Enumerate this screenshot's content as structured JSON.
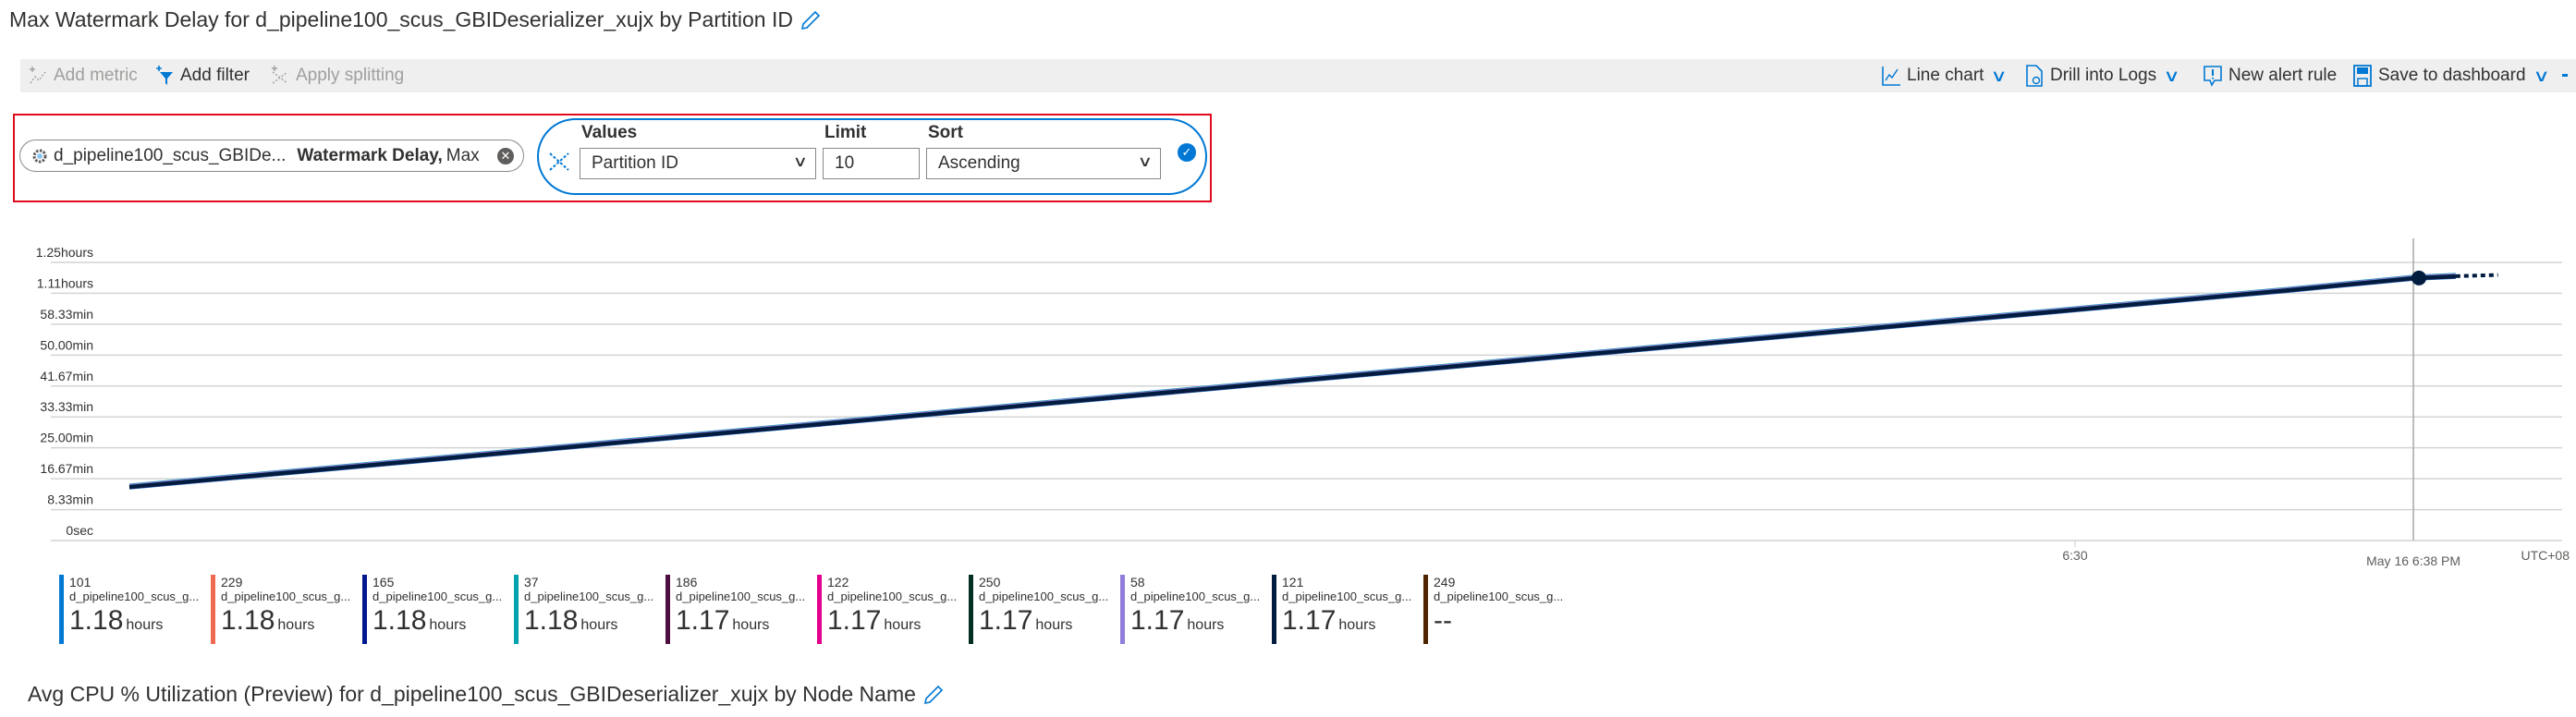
{
  "chart1": {
    "title": "Max Watermark Delay for d_pipeline100_scus_GBIDeserializer_xujx by Partition ID"
  },
  "toolbar": {
    "add_metric": "Add metric",
    "add_filter": "Add filter",
    "apply_splitting": "Apply splitting",
    "line_chart": "Line chart",
    "drill_into_logs": "Drill into Logs",
    "new_alert_rule": "New alert rule",
    "save_to_dashboard": "Save to dashboard"
  },
  "metric_pill": {
    "resource": "d_pipeline100_scus_GBIDe...",
    "metric": "Watermark Delay,",
    "aggregation": "Max"
  },
  "splitting": {
    "values_label": "Values",
    "values_selected": "Partition ID",
    "limit_label": "Limit",
    "limit_value": "10",
    "sort_label": "Sort",
    "sort_selected": "Ascending"
  },
  "colors": {
    "accent": "#0078d4",
    "highlight_border": "#e00b1c"
  },
  "chart_data": {
    "type": "line",
    "title": "Max Watermark Delay for d_pipeline100_scus_GBIDeserializer_xujx by Partition ID",
    "ylabel": "",
    "ylim_min": [
      0,
      75
    ],
    "yticks": [
      {
        "v": 0,
        "label": "0sec"
      },
      {
        "v": 8.33,
        "label": "8.33min"
      },
      {
        "v": 16.67,
        "label": "16.67min"
      },
      {
        "v": 25,
        "label": "25.00min"
      },
      {
        "v": 33.33,
        "label": "33.33min"
      },
      {
        "v": 41.67,
        "label": "41.67min"
      },
      {
        "v": 50,
        "label": "50.00min"
      },
      {
        "v": 58.33,
        "label": "58.33min"
      },
      {
        "v": 66.67,
        "label": "1.11hours"
      },
      {
        "v": 75,
        "label": "1.25hours"
      }
    ],
    "xticks": [
      {
        "t": "18:30",
        "label": "6:30"
      }
    ],
    "crosshair": {
      "t": "18:38",
      "label": "May 16 6:38 PM",
      "value_min": 70.8
    },
    "timezone": "UTC+08",
    "grid": true,
    "x": [
      "17:44",
      "17:50",
      "17:55",
      "18:00",
      "18:05",
      "18:10",
      "18:15",
      "18:20",
      "18:25",
      "18:30",
      "18:35",
      "18:38",
      "18:39"
    ],
    "y_min": [
      14.5,
      20.7,
      25.9,
      31.1,
      36.3,
      41.5,
      46.7,
      51.9,
      57.1,
      62.3,
      67.5,
      70.8,
      71.3
    ],
    "incomplete_until": {
      "t": "18:40",
      "value_min": 71.6
    },
    "series": [
      {
        "name": "101",
        "color": "#0078d4",
        "value": "1.18",
        "unit": "hours"
      },
      {
        "name": "229",
        "color": "#ef6950",
        "value": "1.18",
        "unit": "hours"
      },
      {
        "name": "165",
        "color": "#00188f",
        "value": "1.18",
        "unit": "hours"
      },
      {
        "name": "37",
        "color": "#00a2ad",
        "value": "1.18",
        "unit": "hours"
      },
      {
        "name": "186",
        "color": "#4c0d3f",
        "value": "1.17",
        "unit": "hours"
      },
      {
        "name": "122",
        "color": "#e3008c",
        "value": "1.17",
        "unit": "hours"
      },
      {
        "name": "250",
        "color": "#022f22",
        "value": "1.17",
        "unit": "hours"
      },
      {
        "name": "58",
        "color": "#917edb",
        "value": "1.17",
        "unit": "hours"
      },
      {
        "name": "121",
        "color": "#001d3f",
        "value": "1.17",
        "unit": "hours"
      },
      {
        "name": "249",
        "color": "#4f2500",
        "value": "--",
        "unit": ""
      }
    ],
    "series_resource": "d_pipeline100_scus_g..."
  },
  "chart2": {
    "title": "Avg CPU % Utilization (Preview) for d_pipeline100_scus_GBIDeserializer_xujx by Node Name"
  }
}
